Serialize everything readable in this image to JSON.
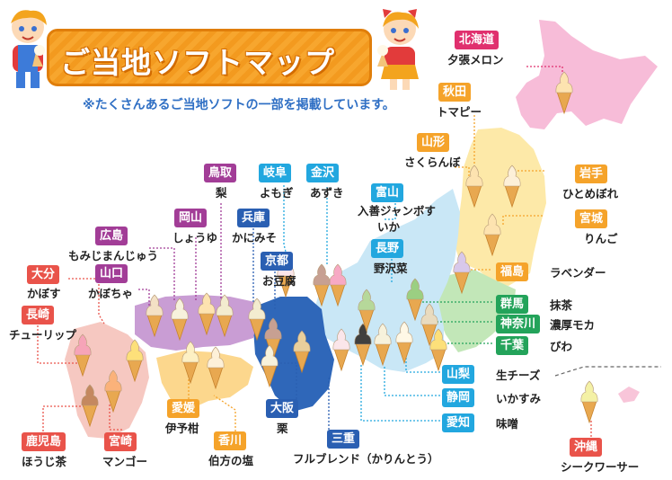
{
  "title": "ご当地ソフトマップ",
  "subtitle": "※たくさんあるご当地ソフトの一部を掲載しています。",
  "colors": {
    "banner": "#f39a1f",
    "hokkaido": "#f7b9d6",
    "tohoku": "#fde9a6",
    "kanto": "#bfe6b5",
    "chubu": "#c8e6f5",
    "kinki": "#2f65b8",
    "chugoku": "#c79ad3",
    "shikoku": "#fcd689",
    "kyushu": "#f6c7c0",
    "okinawa": "#f8c4d8"
  },
  "regions": [
    {
      "id": "hokkaido",
      "name": "北海道",
      "flavor": "夕張メロン",
      "color": "#e0306e"
    },
    {
      "id": "akita",
      "name": "秋田",
      "flavor": "トマピー",
      "color": "#f5a32a"
    },
    {
      "id": "yamagata",
      "name": "山形",
      "flavor": "さくらんぼ",
      "color": "#f5a32a"
    },
    {
      "id": "iwate",
      "name": "岩手",
      "flavor": "ひとめぼれ",
      "color": "#f5a32a"
    },
    {
      "id": "miyagi",
      "name": "宮城",
      "flavor": "りんご",
      "color": "#f5a32a"
    },
    {
      "id": "fukushima",
      "name": "福島",
      "flavor": "ラベンダー",
      "color": "#f5a32a"
    },
    {
      "id": "gunma",
      "name": "群馬",
      "flavor": "抹茶",
      "color": "#23a35a"
    },
    {
      "id": "kanagawa",
      "name": "神奈川",
      "flavor": "濃厚モカ",
      "color": "#23a35a"
    },
    {
      "id": "chiba",
      "name": "千葉",
      "flavor": "びわ",
      "color": "#23a35a"
    },
    {
      "id": "yamanashi",
      "name": "山梨",
      "flavor": "生チーズ",
      "color": "#22a7df"
    },
    {
      "id": "shizuoka",
      "name": "静岡",
      "flavor": "いかすみ",
      "color": "#22a7df"
    },
    {
      "id": "aichi",
      "name": "愛知",
      "flavor": "味噌",
      "color": "#22a7df"
    },
    {
      "id": "toyama",
      "name": "富山",
      "flavor": "入善ジャンボすいか",
      "color": "#22a7df"
    },
    {
      "id": "nagano",
      "name": "長野",
      "flavor": "野沢菜",
      "color": "#22a7df"
    },
    {
      "id": "gifu",
      "name": "岐阜",
      "flavor": "よもぎ",
      "color": "#22a7df"
    },
    {
      "id": "kanazawa",
      "name": "金沢",
      "flavor": "あずき",
      "color": "#22a7df"
    },
    {
      "id": "tottori",
      "name": "鳥取",
      "flavor": "梨",
      "color": "#a23d97"
    },
    {
      "id": "hyogo",
      "name": "兵庫",
      "flavor": "かにみそ",
      "color": "#2a5fb2"
    },
    {
      "id": "okayama",
      "name": "岡山",
      "flavor": "しょうゆ",
      "color": "#a23d97"
    },
    {
      "id": "kyoto",
      "name": "京都",
      "flavor": "お豆腐",
      "color": "#2a5fb2"
    },
    {
      "id": "hiroshima",
      "name": "広島",
      "flavor": "もみじまんじゅう",
      "color": "#a23d97"
    },
    {
      "id": "yamaguchi",
      "name": "山口",
      "flavor": "かぼちゃ",
      "color": "#a23d97"
    },
    {
      "id": "oita",
      "name": "大分",
      "flavor": "かぼす",
      "color": "#e9534a"
    },
    {
      "id": "nagasaki",
      "name": "長崎",
      "flavor": "チューリップ",
      "color": "#e9534a"
    },
    {
      "id": "kagoshima",
      "name": "鹿児島",
      "flavor": "ほうじ茶",
      "color": "#e9534a"
    },
    {
      "id": "miyazaki",
      "name": "宮崎",
      "flavor": "マンゴー",
      "color": "#e9534a"
    },
    {
      "id": "ehime",
      "name": "愛媛",
      "flavor": "伊予柑",
      "color": "#f5a32a"
    },
    {
      "id": "kagawa",
      "name": "香川",
      "flavor": "伯方の塩",
      "color": "#f5a32a"
    },
    {
      "id": "osaka",
      "name": "大阪",
      "flavor": "栗",
      "color": "#2a5fb2"
    },
    {
      "id": "mie",
      "name": "三重",
      "flavor": "フルブレンド（かりんとう）",
      "color": "#2a5fb2"
    },
    {
      "id": "okinawa",
      "name": "沖縄",
      "flavor": "シークワーサー",
      "color": "#e9534a"
    }
  ]
}
